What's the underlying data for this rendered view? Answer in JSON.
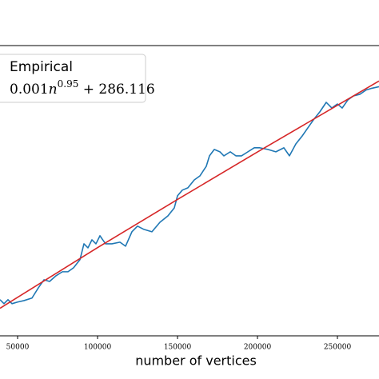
{
  "chart_data": {
    "type": "line",
    "xlabel": "number of vertices",
    "xlim": [
      39000,
      276000
    ],
    "ylim": [
      294,
      453
    ],
    "xticks": [
      50000,
      100000,
      150000,
      200000,
      250000
    ],
    "legend": "upper left",
    "series": [
      {
        "name": "Empirical",
        "color": "#1f77b4",
        "x": [
          39000,
          41500,
          44000,
          46500,
          50000,
          54000,
          59000,
          63000,
          66500,
          70000,
          74000,
          78000,
          81500,
          85000,
          89000,
          91500,
          94000,
          96500,
          99000,
          101500,
          105000,
          109000,
          114000,
          117500,
          121500,
          125000,
          129000,
          134000,
          139000,
          144000,
          148000,
          150000,
          153000,
          156500,
          160500,
          164000,
          168000,
          170000,
          173000,
          176500,
          179000,
          183000,
          186500,
          190000,
          194000,
          198000,
          201500,
          206500,
          211500,
          216500,
          220000,
          224000,
          228000,
          231500,
          235000,
          239000,
          243000,
          246500,
          250000,
          253000,
          256500,
          260000,
          264000,
          268000,
          271500,
          276000
        ],
        "values": [
          313.8,
          311.6,
          313.8,
          311.6,
          312.5,
          313.3,
          314.7,
          320.3,
          324.7,
          323.8,
          326.9,
          329.1,
          329.1,
          331.3,
          335.7,
          344.4,
          342.2,
          346.6,
          344.4,
          348.8,
          344.4,
          344.4,
          345.3,
          343.1,
          351.0,
          354.1,
          352.3,
          351.0,
          356.2,
          359.7,
          364.1,
          370.7,
          373.8,
          375.1,
          379.4,
          381.6,
          386.9,
          392.6,
          396.1,
          394.8,
          392.6,
          394.8,
          392.6,
          392.6,
          394.8,
          397.0,
          397.0,
          396.1,
          394.8,
          397.0,
          392.6,
          399.1,
          403.5,
          407.9,
          412.3,
          416.7,
          421.9,
          418.8,
          421.0,
          418.8,
          423.2,
          425.4,
          426.3,
          428.7,
          429.6,
          430.5
        ]
      },
      {
        "name": "0.001n^0.95 + 286.116",
        "color": "#d62728",
        "x": [
          39000,
          100000,
          150000,
          200000,
          276000
        ],
        "values": [
          309.1,
          342.3,
          368.7,
          394.7,
          433.6
        ]
      }
    ]
  }
}
